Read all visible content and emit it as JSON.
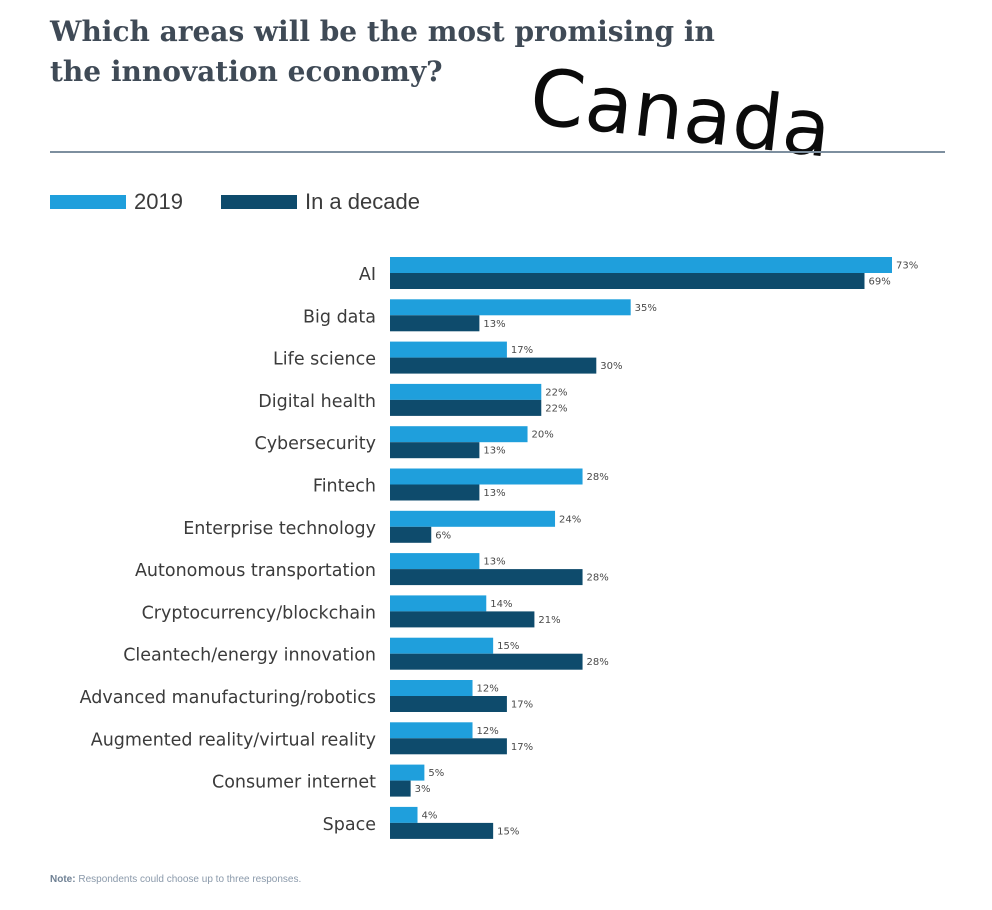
{
  "title": "Which areas will be the most promising in the innovation economy?",
  "overlay_text": "Canada",
  "colors": {
    "series_2019": "#1f9fdc",
    "series_decade": "#0e4b6c",
    "rule": "#7d8f9f"
  },
  "note": {
    "label": "Note:",
    "text": "Respondents could choose up to three responses."
  },
  "chart_data": {
    "type": "bar",
    "orientation": "horizontal",
    "title": "Which areas will be the most promising in the innovation economy?",
    "xlabel": "",
    "ylabel": "",
    "xlim": [
      0,
      75
    ],
    "value_suffix": "%",
    "legend_position": "top-left",
    "grid": false,
    "categories": [
      "AI",
      "Big data",
      "Life science",
      "Digital health",
      "Cybersecurity",
      "Fintech",
      "Enterprise technology",
      "Autonomous transportation",
      "Cryptocurrency/blockchain",
      "Cleantech/energy innovation",
      "Advanced manufacturing/robotics",
      "Augmented reality/virtual reality",
      "Consumer internet",
      "Space"
    ],
    "series": [
      {
        "name": "2019",
        "values": [
          73,
          35,
          17,
          22,
          20,
          28,
          24,
          13,
          14,
          15,
          12,
          12,
          5,
          4
        ]
      },
      {
        "name": "In a decade",
        "values": [
          69,
          13,
          30,
          22,
          13,
          13,
          6,
          28,
          21,
          28,
          17,
          17,
          3,
          15
        ]
      }
    ]
  }
}
